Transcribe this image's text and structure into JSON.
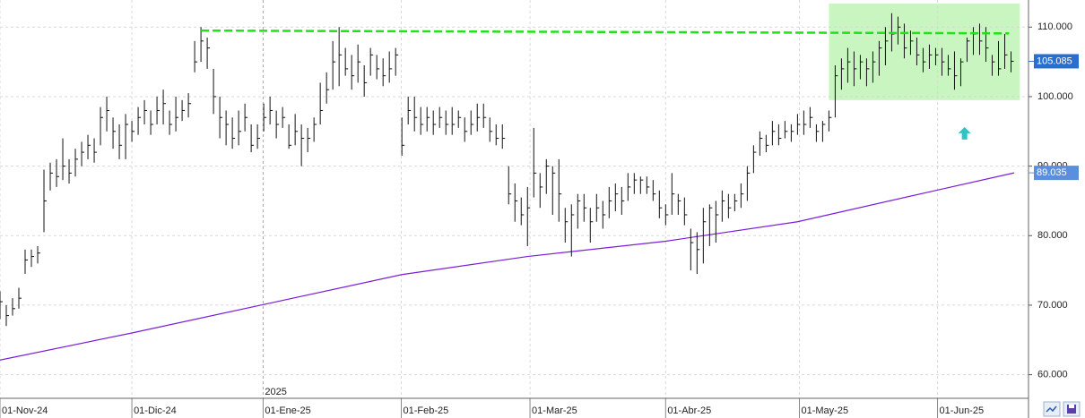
{
  "chart_data": {
    "type": "ohlc",
    "x": [
      0,
      1,
      2,
      3,
      4,
      5,
      6,
      7,
      8,
      9,
      10,
      11,
      12,
      13,
      14,
      15,
      16,
      17,
      18,
      19,
      20,
      21,
      22,
      23,
      24,
      25,
      26,
      27,
      28,
      29,
      30,
      31,
      32,
      33,
      34,
      35,
      36,
      37,
      38,
      39,
      40,
      41,
      42,
      43,
      44,
      45,
      46,
      47,
      48,
      49,
      50,
      51,
      52,
      53,
      54,
      55,
      56,
      57,
      58,
      59,
      60,
      61,
      62,
      63,
      64,
      65,
      66,
      67,
      68,
      69,
      70,
      71,
      72,
      73,
      74,
      75,
      76,
      77,
      78,
      79,
      80,
      81,
      82,
      83,
      84,
      85,
      86,
      87,
      88,
      89,
      90,
      91,
      92,
      93,
      94,
      95,
      96,
      97,
      98,
      99,
      100,
      101,
      102,
      103,
      104,
      105,
      106,
      107,
      108,
      109,
      110,
      111,
      112,
      113,
      114,
      115,
      116,
      117,
      118,
      119,
      120,
      121,
      122,
      123,
      124,
      125,
      126,
      127,
      128,
      129,
      130,
      131,
      132,
      133,
      134,
      135,
      136,
      137,
      138,
      139,
      140,
      141,
      142,
      143,
      144,
      145,
      146,
      147,
      148,
      149,
      150,
      151,
      152,
      153,
      154,
      155,
      156,
      157,
      158,
      159,
      160,
      161
    ],
    "high": [
      72,
      70,
      71,
      72.5,
      78,
      78,
      78.5,
      89.5,
      90.5,
      91,
      94,
      91,
      92.5,
      93.5,
      94.5,
      94,
      98.5,
      100,
      97,
      96,
      97.5,
      96.5,
      98.5,
      99.5,
      98,
      100,
      101,
      98,
      100,
      99.5,
      100.5,
      108,
      110,
      108.5,
      104,
      100,
      98,
      97,
      98,
      99,
      96,
      96,
      99,
      100,
      98,
      98.5,
      96,
      97.5,
      96,
      95.5,
      97,
      102,
      103.5,
      108,
      110,
      107,
      106,
      107.5,
      104.5,
      107,
      106,
      105.5,
      106.5,
      107,
      97,
      100,
      100,
      98.5,
      98.5,
      98,
      98.5,
      98,
      98.5,
      98,
      97,
      98,
      99,
      99,
      97,
      96,
      96,
      90,
      87.5,
      85.5,
      87,
      95.5,
      89,
      91,
      90,
      91,
      84,
      84.5,
      86,
      86,
      84,
      86,
      85,
      87,
      87.5,
      87,
      89,
      89,
      88.5,
      88.5,
      88,
      86.5,
      84.5,
      89,
      86,
      85.5,
      81,
      80.5,
      84,
      84.5,
      85,
      86.5,
      86,
      86,
      87.5,
      90,
      93,
      95,
      94.5,
      96.5,
      96,
      96.5,
      96,
      97.5,
      98,
      98.5,
      96,
      96.5,
      98,
      104.5,
      105.5,
      107,
      106.5,
      106,
      105.5,
      106.5,
      108,
      110,
      112,
      111.5,
      110.5,
      109.5,
      108.5,
      107,
      107.5,
      107,
      107,
      106,
      106.5,
      105.5,
      108.5,
      110,
      110.5,
      110,
      106,
      108,
      109,
      106.5
    ],
    "low": [
      68,
      67,
      68.5,
      69.5,
      74.5,
      75.5,
      76,
      80.5,
      86.5,
      87,
      88,
      87.5,
      88.5,
      90,
      91,
      90.5,
      93,
      95,
      92.5,
      91,
      91,
      93.5,
      94.5,
      96,
      94.5,
      96,
      96,
      94.5,
      95,
      96.5,
      97,
      103.5,
      105,
      104,
      97.5,
      94,
      93,
      92.5,
      93,
      95,
      92,
      92.5,
      95,
      96,
      94,
      95.5,
      92.5,
      93,
      90,
      92,
      93.5,
      96,
      99,
      101,
      101.5,
      103,
      101,
      102,
      100,
      103,
      102.5,
      101.5,
      102,
      103,
      91.5,
      96,
      95,
      94.5,
      95,
      94.5,
      95.5,
      94.5,
      94.5,
      95.5,
      93.5,
      94.5,
      95,
      95.5,
      93.5,
      93,
      92.5,
      84.5,
      82,
      81.5,
      78.5,
      85.5,
      84,
      86,
      83,
      82,
      79,
      77,
      81,
      82,
      79,
      82,
      81,
      82.5,
      83.5,
      83,
      85,
      86,
      86,
      86,
      85,
      82.5,
      81.5,
      83,
      83,
      81.5,
      75,
      74.5,
      76,
      78.5,
      79,
      82,
      82.5,
      83.5,
      84,
      85,
      89,
      91.5,
      92,
      93,
      93,
      94,
      93.5,
      94.5,
      94.5,
      95.5,
      93.5,
      93.5,
      95,
      97,
      101,
      102,
      101.5,
      102.5,
      101.5,
      102,
      103,
      104.5,
      106.5,
      107.5,
      105.5,
      106,
      104.5,
      103.5,
      104,
      104.5,
      103,
      103,
      101,
      101.5,
      105,
      106,
      106,
      105,
      103,
      103,
      104,
      103.5
    ],
    "close": [
      70.5,
      68.5,
      69.5,
      71,
      76.5,
      77,
      77.5,
      85,
      89,
      88.5,
      90,
      89,
      91,
      92,
      93,
      92,
      97,
      98,
      95,
      93,
      96,
      95,
      97,
      98,
      96,
      98,
      99,
      96,
      97,
      98,
      99,
      105,
      108,
      107,
      100,
      97,
      96,
      94,
      95,
      97,
      93,
      94,
      97,
      98,
      96,
      97,
      93,
      95,
      94,
      94,
      96,
      98,
      101,
      105,
      106,
      104,
      103,
      105,
      102,
      106,
      104,
      103,
      104,
      106,
      93,
      98,
      97,
      96,
      97,
      96,
      97,
      96,
      96,
      97,
      95,
      96,
      97,
      97,
      95,
      94,
      94,
      86,
      85,
      83,
      84,
      89,
      87,
      90,
      89,
      86,
      82,
      83,
      85,
      84,
      82,
      84,
      83,
      85,
      86,
      85,
      87,
      88,
      88,
      87,
      86,
      84,
      83,
      86,
      85,
      83,
      79,
      78,
      82,
      84,
      83,
      85,
      84,
      85,
      86,
      89,
      92,
      94,
      93,
      95,
      94,
      95,
      95,
      96,
      96,
      97,
      95,
      96,
      97,
      103,
      104,
      105,
      104,
      105,
      104,
      105,
      107,
      108,
      109,
      110,
      107,
      108,
      106,
      105,
      106,
      106,
      105,
      104,
      103,
      105,
      108,
      109,
      108,
      107,
      105,
      104,
      106,
      105.085
    ],
    "bar_color": "#111111",
    "moving_average": {
      "x": [
        0,
        21,
        42,
        64,
        84,
        106,
        127,
        149,
        161.5
      ],
      "values": [
        62.1,
        66.0,
        70.1,
        74.4,
        77.0,
        79.2,
        82.0,
        86.5,
        89.035
      ],
      "color": "#7a1fd6"
    },
    "trendline": {
      "x": [
        32,
        160.7
      ],
      "y": [
        109.5,
        109.1
      ],
      "color": "#22e01a"
    },
    "highlight": {
      "xlim": [
        132,
        162.4
      ],
      "ylim": [
        99.5,
        113.4
      ],
      "color": "#c8f5c0"
    },
    "arrow": {
      "x": 153.6,
      "y": 94.6,
      "color": "#2ec4c4"
    },
    "price_labels": [
      {
        "value": 105.085,
        "label": "105.085",
        "color": "#2a6fd0"
      },
      {
        "value": 89.035,
        "label": "89.035",
        "color": "#5b8fdc"
      }
    ],
    "year_marker": {
      "x": 41.9,
      "label": "2025"
    },
    "xlim": [
      0,
      163.5
    ],
    "ylim": [
      56.6,
      113.9
    ],
    "xticks": [
      {
        "value": 0,
        "label": "01-Nov-24"
      },
      {
        "value": 21,
        "label": "01-Dic-24"
      },
      {
        "value": 41.9,
        "label": "01-Ene-25"
      },
      {
        "value": 63.9,
        "label": "01-Feb-25"
      },
      {
        "value": 84.4,
        "label": "01-Mar-25"
      },
      {
        "value": 106,
        "label": "01-Abr-25"
      },
      {
        "value": 127.3,
        "label": "01-May-25"
      },
      {
        "value": 149.3,
        "label": "01-Jun-25"
      }
    ],
    "yticks": [
      {
        "value": 60,
        "label": "60.000"
      },
      {
        "value": 70,
        "label": "70.000"
      },
      {
        "value": 80,
        "label": "80.000"
      },
      {
        "value": 90,
        "label": "90.000"
      },
      {
        "value": 100,
        "label": "100.000"
      },
      {
        "value": 110,
        "label": "110.000"
      }
    ],
    "grid": true
  }
}
